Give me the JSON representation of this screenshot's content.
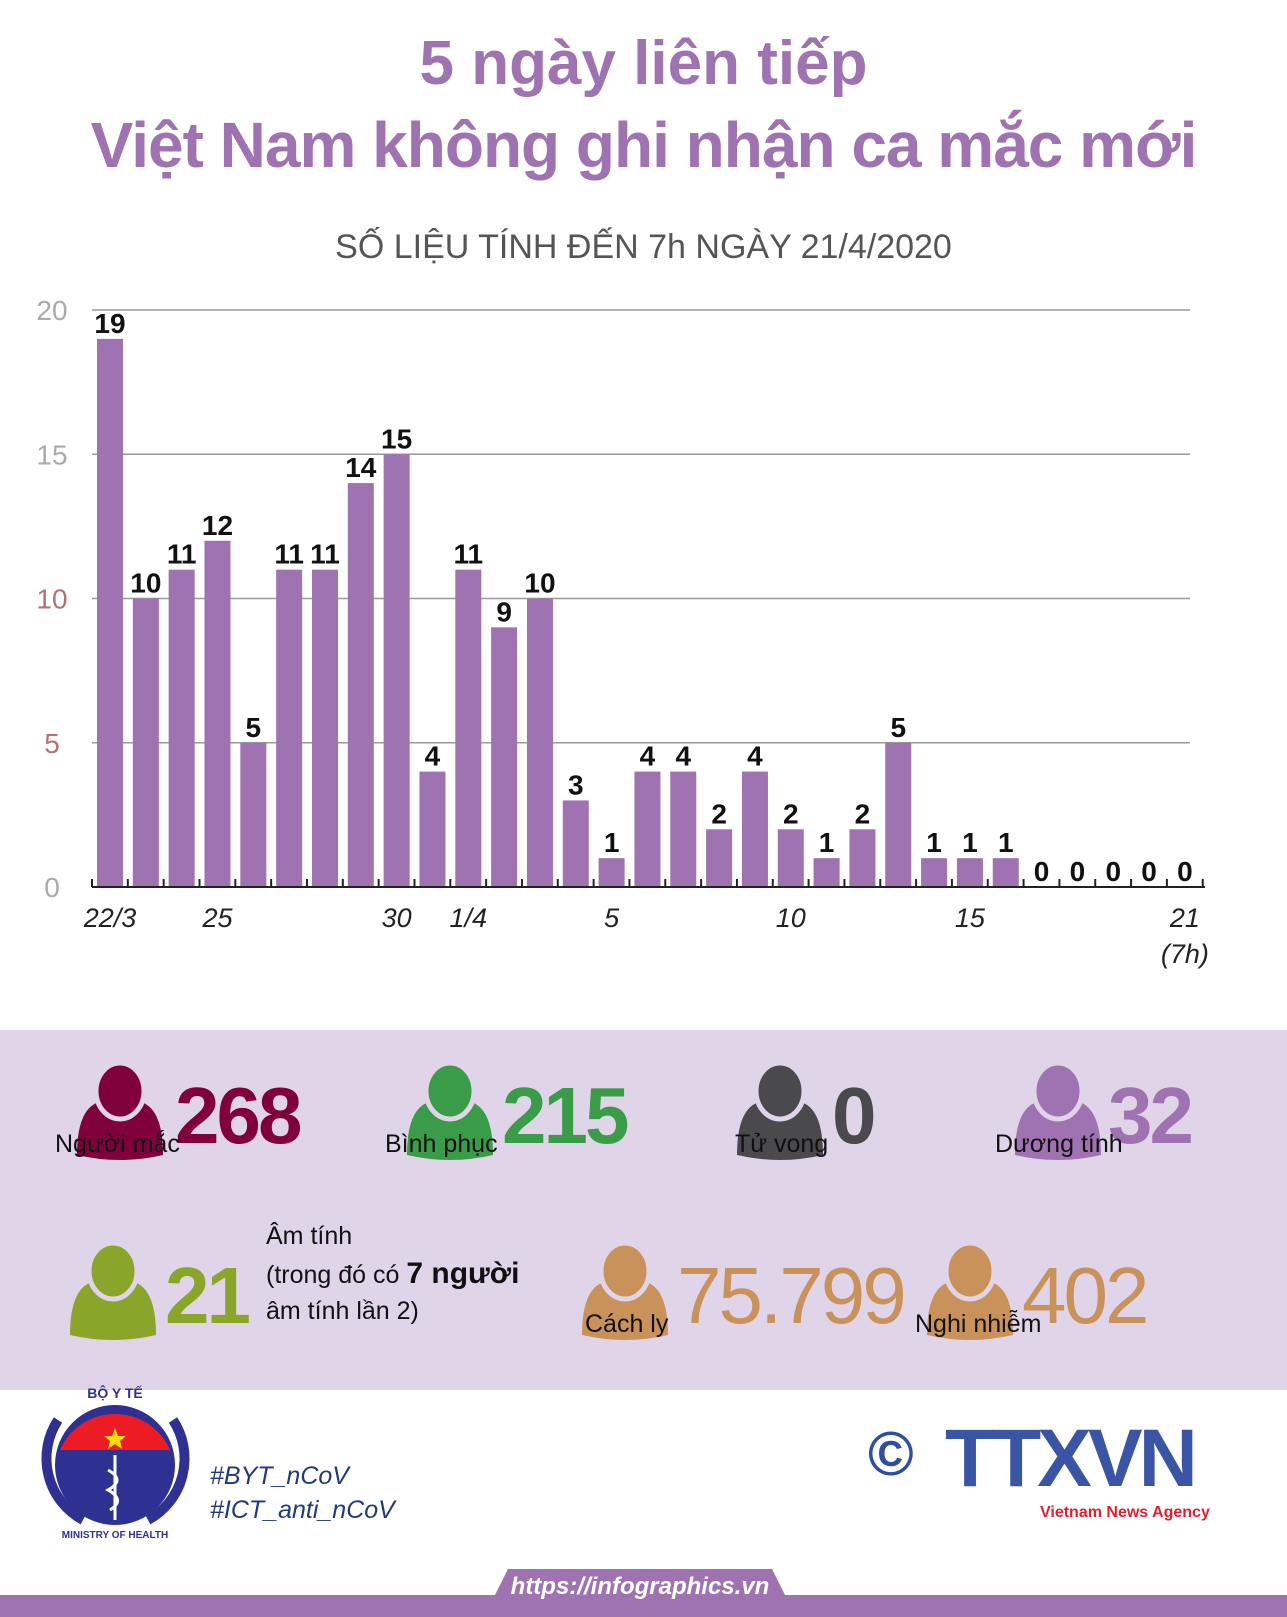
{
  "header": {
    "title_line1": "5 ngày liên tiếp",
    "title_line2": "Việt Nam không ghi nhận ca mắc mới",
    "subtitle": "SỐ LIỆU TÍNH ĐẾN 7h NGÀY 21/4/2020"
  },
  "chart_data": {
    "type": "bar",
    "categories": [
      "22/3",
      "23/3",
      "24/3",
      "25/3",
      "26/3",
      "27/3",
      "28/3",
      "29/3",
      "30/3",
      "31/3",
      "1/4",
      "2/4",
      "3/4",
      "4/4",
      "5/4",
      "6/4",
      "7/4",
      "8/4",
      "9/4",
      "10/4",
      "11/4",
      "12/4",
      "13/4",
      "14/4",
      "15/4",
      "16/4",
      "17/4",
      "18/4",
      "19/4",
      "20/4",
      "21/4"
    ],
    "values": [
      19,
      10,
      11,
      12,
      5,
      11,
      11,
      14,
      15,
      4,
      11,
      9,
      10,
      3,
      1,
      4,
      4,
      2,
      4,
      2,
      1,
      2,
      5,
      1,
      1,
      1,
      0,
      0,
      0,
      0,
      0
    ],
    "tick_labels": [
      {
        "index": 0,
        "text": "22/3"
      },
      {
        "index": 3,
        "text": "25"
      },
      {
        "index": 8,
        "text": "30"
      },
      {
        "index": 10,
        "text": "1/4"
      },
      {
        "index": 14,
        "text": "5"
      },
      {
        "index": 19,
        "text": "10"
      },
      {
        "index": 24,
        "text": "15"
      },
      {
        "index": 30,
        "text": "21",
        "text2": "(7h)"
      }
    ],
    "yticks": [
      0,
      5,
      10,
      15,
      20
    ],
    "ylim": [
      0,
      20
    ],
    "grid": true,
    "bar_color": "#9f72b2",
    "title": "",
    "xlabel": "",
    "ylabel": ""
  },
  "stats": [
    {
      "value": "268",
      "label": "Người mắc",
      "color": "#80003c"
    },
    {
      "value": "215",
      "label": "Bình phục",
      "color": "#3a9b48"
    },
    {
      "value": "0",
      "label": "Tử vong",
      "color": "#4a4a4c"
    },
    {
      "value": "32",
      "label": "Dương tính",
      "color": "#9f72b2"
    },
    {
      "value": "21",
      "label": "Âm tính",
      "note_prefix": "(trong đó có ",
      "note_bold": "7 người",
      "note_suffix": "âm tính lần 2)",
      "color": "#8aa62a"
    },
    {
      "value": "75.799",
      "label": "Cách ly",
      "color": "#c9925a"
    },
    {
      "value": "402",
      "label": "Nghi nhiễm",
      "color": "#c9925a"
    }
  ],
  "footer": {
    "logo_top": "BỘ Y TẾ",
    "logo_bottom": "MINISTRY OF HEALTH",
    "hashtag1": "#BYT_nCoV",
    "hashtag2": "#ICT_anti_nCoV",
    "agency": "TTXVN",
    "agency_sub": "Vietnam News Agency",
    "copyright": "©",
    "url": "https://infographics.vn"
  }
}
